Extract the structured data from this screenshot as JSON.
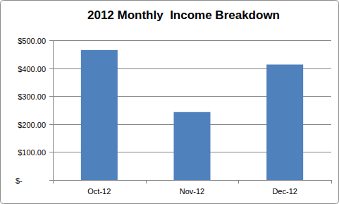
{
  "chart_data": {
    "type": "bar",
    "title": "2012 Monthly  Income Breakdown",
    "categories": [
      "Oct-12",
      "Nov-12",
      "Dec-12"
    ],
    "values": [
      465,
      243,
      413
    ],
    "color": "#4f81bd",
    "ylim": [
      0,
      500
    ],
    "yticks": [
      {
        "value": 0,
        "label": "$-"
      },
      {
        "value": 100,
        "label": "$100.00"
      },
      {
        "value": 200,
        "label": "$200.00"
      },
      {
        "value": 300,
        "label": "$300.00"
      },
      {
        "value": 400,
        "label": "$400.00"
      },
      {
        "value": 500,
        "label": "$500.00"
      }
    ],
    "grid": true
  }
}
